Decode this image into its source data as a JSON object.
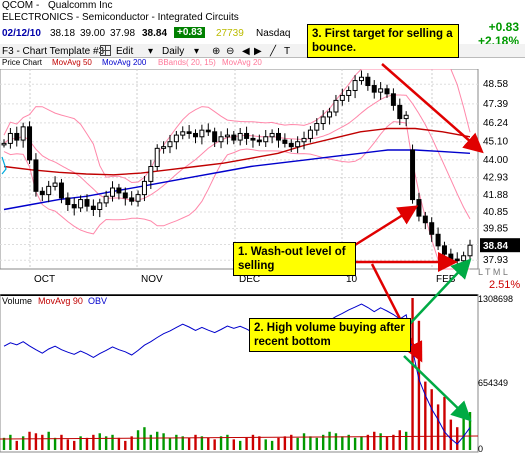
{
  "header": {
    "symbol": "QCOM",
    "separator": "-",
    "company": "Qualcomm Inc",
    "sector": "ELECTRONICS - Semiconductor - Integrated Circuits",
    "date": "02/12/10",
    "open": "38.18",
    "high": "39.00",
    "low": "37.98",
    "close": "38.84",
    "change": "+0.83",
    "volume": "27739",
    "exchange": "Nasdaq",
    "change_big": "+0.83",
    "change_pct": "+2.18%"
  },
  "toolbar": {
    "template_label": "F3 - Chart Template #3",
    "edit_label": "Edit",
    "period_label": "Daily"
  },
  "legend": {
    "price_chart": "Price Chart",
    "ma50": "MovAvg 50",
    "ma200": "MovAvg 200",
    "bbands": "BBands( 20, 15)",
    "ma20": "MovAvg 20"
  },
  "price_axis": {
    "ticks": [
      "48.58",
      "47.39",
      "46.24",
      "45.10",
      "44.00",
      "42.93",
      "41.88",
      "40.85",
      "39.85",
      "38.88",
      "37.93"
    ],
    "current_price": "38.84",
    "pct_badge": "2.51%",
    "side_letters": "L T M L"
  },
  "volume_panel": {
    "label": "Volume",
    "ma90": "MovAvg 90",
    "obv": "OBV",
    "ticks": [
      "1308698",
      "654349",
      "0"
    ]
  },
  "annotations": {
    "a1": "1. Wash-out level of selling",
    "a2": "2. High volume buying after recent bottom",
    "a3": "3. First target for selling a bounce."
  },
  "chart_data": {
    "type": "candlestick",
    "x_labels": [
      "OCT",
      "NOV",
      "DEC",
      "10",
      "FEB"
    ],
    "ylim": [
      37.4,
      49.5
    ],
    "price_ticks": [
      48.58,
      47.39,
      46.24,
      45.1,
      44.0,
      42.93,
      41.88,
      40.85,
      39.85,
      38.88,
      37.93
    ],
    "colors": {
      "ma50": "#c00000",
      "ma200": "#0000cc",
      "bbands": "#ff88aa",
      "candle": "#000000",
      "volume_up": "#009900",
      "volume_down": "#cc0000",
      "obv": "#0000cc"
    },
    "series": [
      {
        "name": "MovAvg 50",
        "values": [
          43.6,
          43.4,
          43.25,
          43.15,
          43.1,
          43.2,
          43.4,
          43.6,
          43.8,
          44.1,
          44.4,
          44.9,
          45.3,
          45.7,
          45.9,
          45.9,
          45.7,
          45.4
        ]
      },
      {
        "name": "MovAvg 200",
        "values": [
          41.0,
          41.3,
          41.6,
          41.8,
          42.1,
          42.4,
          42.7,
          43.0,
          43.3,
          43.6,
          43.8,
          44.0,
          44.2,
          44.4,
          44.6,
          44.6,
          44.5,
          44.4
        ]
      }
    ],
    "price_closes": [
      45.0,
      45.6,
      45.2,
      46.0,
      44.0,
      42.1,
      41.9,
      42.4,
      42.6,
      41.7,
      41.3,
      41.1,
      41.6,
      41.2,
      41.0,
      41.4,
      41.8,
      42.3,
      42.0,
      41.7,
      41.5,
      41.9,
      42.7,
      43.6,
      44.7,
      44.8,
      45.1,
      45.5,
      45.7,
      45.6,
      45.4,
      45.8,
      45.7,
      45.1,
      45.4,
      45.5,
      45.2,
      45.6,
      45.3,
      45.2,
      45.1,
      45.4,
      45.6,
      45.2,
      45.0,
      44.8,
      45.1,
      45.3,
      45.8,
      46.2,
      46.6,
      46.9,
      47.6,
      47.9,
      48.2,
      48.8,
      49.0,
      48.5,
      48.1,
      48.3,
      48.0,
      47.3,
      46.5,
      46.7,
      41.6,
      40.6,
      40.2,
      39.5,
      38.8,
      38.3,
      38.0,
      37.9,
      38.2,
      38.84
    ],
    "volume_values": [
      0.08,
      0.1,
      0.06,
      0.09,
      0.12,
      0.11,
      0.1,
      0.12,
      0.08,
      0.1,
      0.07,
      0.06,
      0.09,
      0.08,
      0.1,
      0.11,
      0.09,
      0.1,
      0.08,
      0.06,
      0.09,
      0.13,
      0.15,
      0.1,
      0.12,
      0.11,
      0.08,
      0.1,
      0.09,
      0.08,
      0.1,
      0.09,
      0.08,
      0.07,
      0.09,
      0.1,
      0.07,
      0.06,
      0.08,
      0.1,
      0.09,
      0.07,
      0.06,
      0.08,
      0.09,
      0.1,
      0.08,
      0.11,
      0.09,
      0.08,
      0.1,
      0.12,
      0.11,
      0.09,
      0.1,
      0.08,
      0.09,
      0.1,
      0.12,
      0.11,
      0.09,
      0.1,
      0.13,
      0.12,
      1.0,
      0.85,
      0.45,
      0.4,
      0.3,
      0.35,
      0.2,
      0.15,
      0.22,
      0.25
    ]
  }
}
